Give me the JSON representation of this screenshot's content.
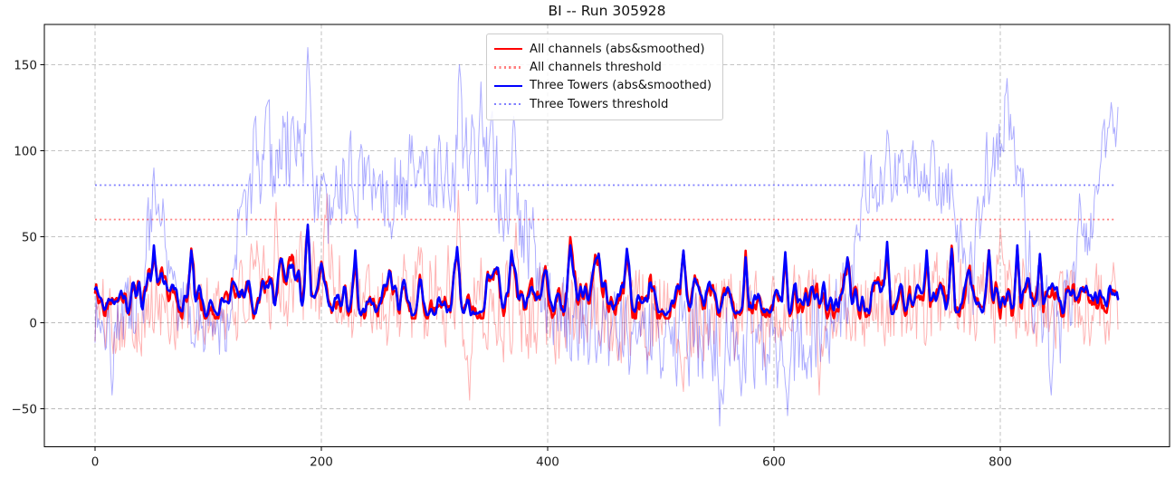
{
  "figure": {
    "title": "BI -- Run 305928"
  },
  "legend": {
    "items": [
      {
        "label": "All channels (abs&smoothed)",
        "color": "#ff0000",
        "alpha": 1.0,
        "style": "solid"
      },
      {
        "label": "All channels threshold",
        "color": "#ff0000",
        "alpha": 0.5,
        "style": "dotted"
      },
      {
        "label": "Three Towers (abs&smoothed)",
        "color": "#0000ff",
        "alpha": 1.0,
        "style": "solid"
      },
      {
        "label": "Three Towers threshold",
        "color": "#0000ff",
        "alpha": 0.5,
        "style": "dotted"
      }
    ]
  },
  "chart_data": {
    "type": "line",
    "title": "BI -- Run 305928",
    "xlabel": "",
    "ylabel": "",
    "grid": true,
    "legend_position": "upper center",
    "x_ticks": [
      0,
      200,
      400,
      600,
      800
    ],
    "y_ticks": [
      -50,
      0,
      50,
      100,
      150
    ],
    "xlim": [
      -44.8,
      949.6
    ],
    "ylim": [
      -72.1,
      173.4
    ],
    "x_range": [
      0,
      904
    ],
    "grid_color": "#bbbbbb",
    "spine_color": "#000000",
    "tick_label_color": "#1c1c1c",
    "thresholds": [
      {
        "key": "all-channels-threshold",
        "name": "All channels threshold",
        "y": 60,
        "color": "#ff0000",
        "alpha": 0.5
      },
      {
        "key": "three-towers-threshold",
        "name": "Three Towers threshold",
        "y": 80,
        "color": "#0000ff",
        "alpha": 0.5
      }
    ],
    "series": [
      {
        "key": "all-channels-raw",
        "name": "All channels (raw)",
        "kind": "raw",
        "color": "#ff0000",
        "alpha": 0.3,
        "width": 1,
        "seed": 101,
        "envelope": [
          [
            0,
            4,
            24
          ],
          [
            50,
            7,
            26
          ],
          [
            95,
            4,
            24
          ],
          [
            132,
            14,
            28
          ],
          [
            152,
            24,
            30
          ],
          [
            178,
            24,
            32
          ],
          [
            202,
            26,
            34
          ],
          [
            218,
            16,
            31
          ],
          [
            252,
            12,
            30
          ],
          [
            300,
            14,
            32
          ],
          [
            322,
            18,
            36
          ],
          [
            342,
            10,
            32
          ],
          [
            382,
            8,
            31
          ],
          [
            432,
            5,
            29
          ],
          [
            482,
            7,
            30
          ],
          [
            542,
            4,
            29
          ],
          [
            602,
            5,
            29
          ],
          [
            662,
            7,
            28
          ],
          [
            702,
            10,
            29
          ],
          [
            762,
            12,
            29
          ],
          [
            802,
            14,
            30
          ],
          [
            842,
            9,
            28
          ],
          [
            877,
            8,
            27
          ],
          [
            904,
            16,
            25
          ]
        ],
        "spikes": [
          [
            160,
            70
          ],
          [
            205,
            75
          ],
          [
            321,
            77
          ],
          [
            331,
            -45
          ],
          [
            372,
            58
          ],
          [
            520,
            -40
          ],
          [
            640,
            -42
          ],
          [
            800,
            55
          ],
          [
            900,
            35
          ]
        ]
      },
      {
        "key": "three-towers-raw",
        "name": "Three Towers (raw)",
        "kind": "raw",
        "color": "#0000ff",
        "alpha": 0.32,
        "width": 1,
        "seed": 202,
        "envelope": [
          [
            0,
            5,
            26
          ],
          [
            40,
            6,
            26
          ],
          [
            48,
            52,
            30
          ],
          [
            56,
            42,
            26
          ],
          [
            63,
            24,
            24
          ],
          [
            75,
            4,
            22
          ],
          [
            115,
            0,
            22
          ],
          [
            126,
            48,
            28
          ],
          [
            140,
            88,
            30
          ],
          [
            162,
            98,
            32
          ],
          [
            186,
            106,
            36
          ],
          [
            196,
            78,
            32
          ],
          [
            205,
            48,
            28
          ],
          [
            215,
            78,
            28
          ],
          [
            240,
            85,
            28
          ],
          [
            262,
            78,
            28
          ],
          [
            288,
            88,
            28
          ],
          [
            312,
            92,
            32
          ],
          [
            326,
            98,
            36
          ],
          [
            342,
            92,
            34
          ],
          [
            362,
            78,
            32
          ],
          [
            382,
            58,
            30
          ],
          [
            394,
            14,
            26
          ],
          [
            425,
            -2,
            26
          ],
          [
            470,
            -6,
            27
          ],
          [
            522,
            -6,
            30
          ],
          [
            552,
            -14,
            36
          ],
          [
            582,
            -6,
            30
          ],
          [
            612,
            -12,
            34
          ],
          [
            642,
            -2,
            28
          ],
          [
            668,
            18,
            26
          ],
          [
            680,
            80,
            22
          ],
          [
            702,
            86,
            22
          ],
          [
            732,
            84,
            22
          ],
          [
            756,
            78,
            22
          ],
          [
            768,
            38,
            28
          ],
          [
            776,
            18,
            26
          ],
          [
            786,
            88,
            28
          ],
          [
            802,
            108,
            26
          ],
          [
            816,
            102,
            24
          ],
          [
            824,
            38,
            26
          ],
          [
            836,
            4,
            28
          ],
          [
            854,
            0,
            28
          ],
          [
            864,
            22,
            22
          ],
          [
            872,
            50,
            18
          ],
          [
            882,
            55,
            18
          ],
          [
            890,
            95,
            18
          ],
          [
            904,
            115,
            16
          ]
        ],
        "spikes": [
          [
            15,
            -42
          ],
          [
            52,
            90
          ],
          [
            60,
            72
          ],
          [
            130,
            70
          ],
          [
            188,
            160
          ],
          [
            322,
            150
          ],
          [
            341,
            140
          ],
          [
            370,
            120
          ],
          [
            552,
            -60
          ],
          [
            612,
            -54
          ],
          [
            700,
            112
          ],
          [
            806,
            142
          ],
          [
            845,
            -42
          ],
          [
            870,
            75
          ],
          [
            898,
            128
          ]
        ]
      },
      {
        "key": "three-towers-smoothed",
        "name": "Three Towers (abs&smoothed)",
        "kind": "smooth",
        "color": "#0000ff",
        "alpha": 1.0,
        "width": 2.6,
        "seed": 303,
        "envelope": [
          [
            0,
            13,
            9
          ],
          [
            45,
            15,
            11
          ],
          [
            60,
            14,
            10
          ],
          [
            120,
            13,
            9
          ],
          [
            150,
            16,
            12
          ],
          [
            190,
            17,
            14
          ],
          [
            210,
            13,
            10
          ],
          [
            260,
            15,
            11
          ],
          [
            320,
            16,
            12
          ],
          [
            380,
            15,
            11
          ],
          [
            450,
            14,
            11
          ],
          [
            520,
            14,
            10
          ],
          [
            560,
            12,
            9
          ],
          [
            620,
            13,
            10
          ],
          [
            680,
            14,
            11
          ],
          [
            740,
            14,
            11
          ],
          [
            800,
            15,
            11
          ],
          [
            860,
            13,
            10
          ],
          [
            904,
            13,
            9
          ]
        ],
        "spikes": [
          [
            52,
            45
          ],
          [
            85,
            42
          ],
          [
            188,
            57
          ],
          [
            230,
            42
          ],
          [
            320,
            44
          ],
          [
            368,
            42
          ],
          [
            420,
            45
          ],
          [
            445,
            40
          ],
          [
            470,
            43
          ],
          [
            520,
            42
          ],
          [
            575,
            38
          ],
          [
            610,
            41
          ],
          [
            665,
            38
          ],
          [
            700,
            47
          ],
          [
            735,
            42
          ],
          [
            757,
            43
          ],
          [
            790,
            42
          ],
          [
            815,
            45
          ],
          [
            835,
            40
          ]
        ]
      },
      {
        "key": "all-channels-smoothed",
        "name": "All channels (abs&smoothed)",
        "kind": "follow",
        "follows": "three-towers-smoothed",
        "color": "#ff0000",
        "alpha": 1.0,
        "width": 2.6,
        "seed": 404,
        "jitter": 4.2,
        "bias": -1.0
      }
    ]
  }
}
